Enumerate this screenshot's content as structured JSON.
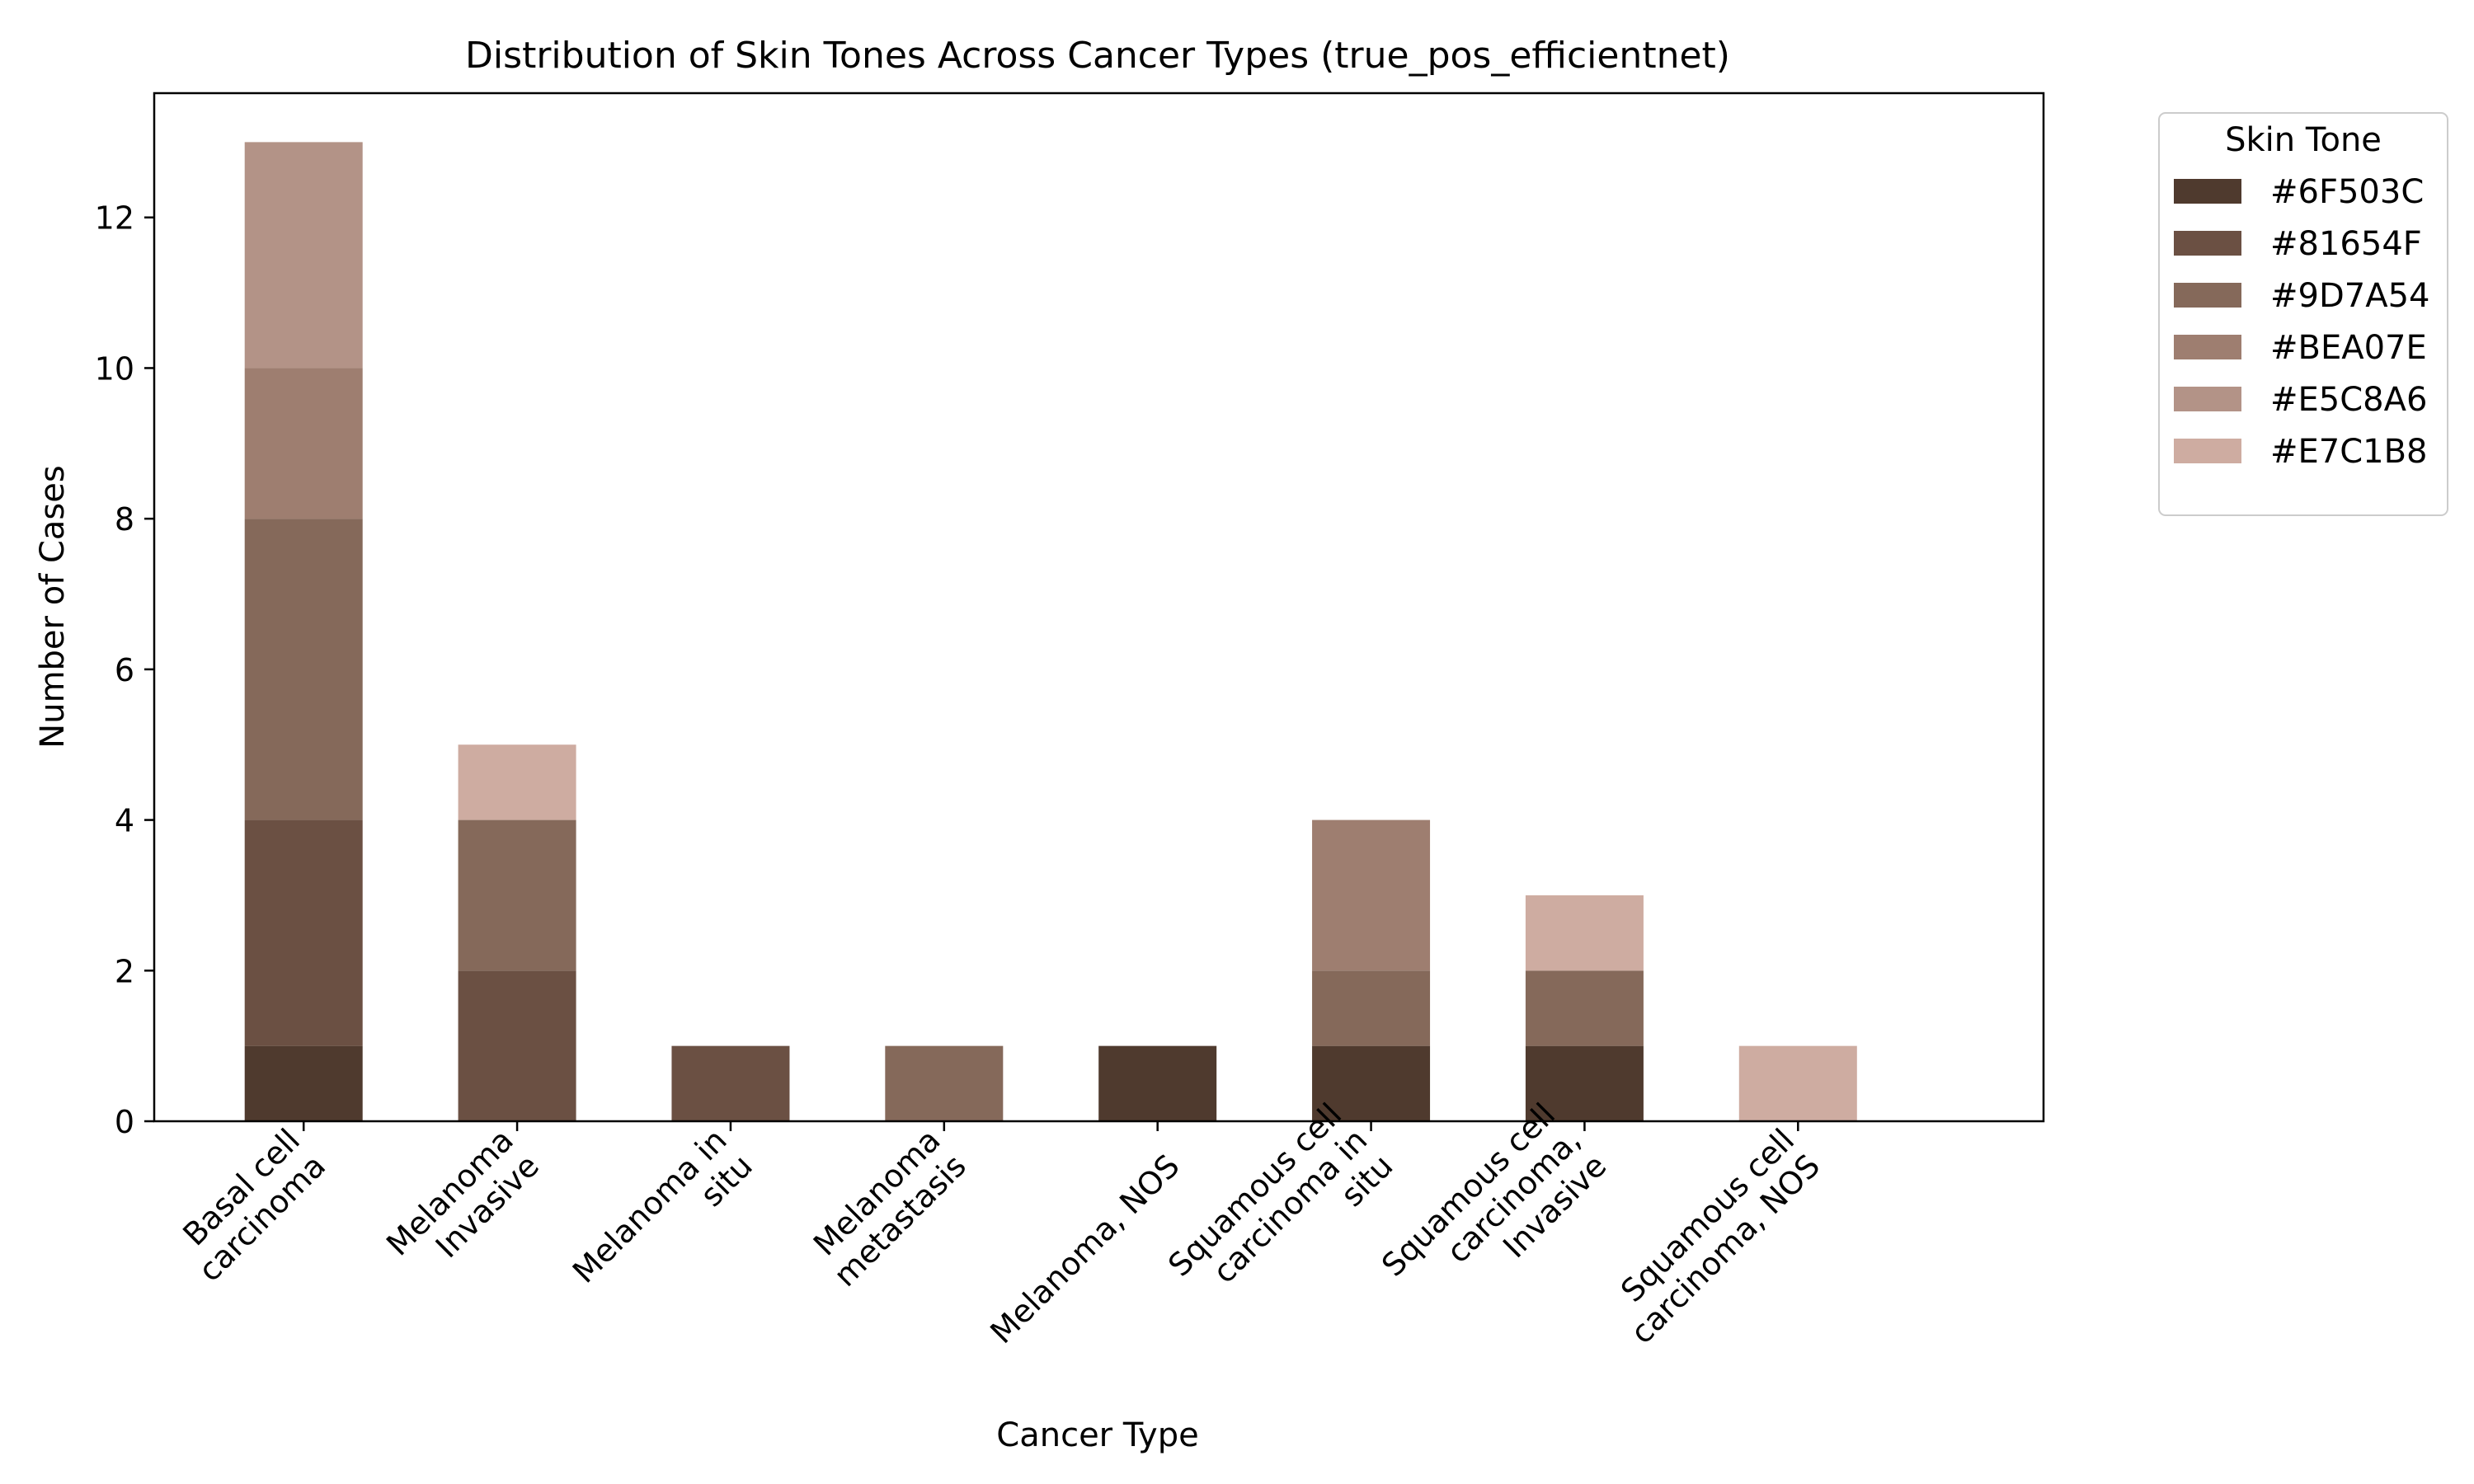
{
  "chart_data": {
    "type": "bar",
    "stacked": true,
    "title": "Distribution of Skin Tones Across Cancer Types (true_pos_efficientnet)",
    "xlabel": "Cancer Type",
    "ylabel": "Number of Cases",
    "ylim": [
      0,
      13.65
    ],
    "yticks": [
      0,
      2,
      4,
      6,
      8,
      10,
      12
    ],
    "grid": false,
    "legend_title": "Skin Tone",
    "legend_position": "outside top-right",
    "categories": [
      [
        "Basal cell",
        "carcinoma"
      ],
      [
        "Melanoma",
        "Invasive"
      ],
      [
        "Melanoma in",
        "situ"
      ],
      [
        "Melanoma",
        "metastasis"
      ],
      [
        "Melanoma, NOS"
      ],
      [
        "Squamous cell",
        "carcinoma in",
        "situ"
      ],
      [
        "Squamous cell",
        "carcinoma,",
        "Invasive"
      ],
      [
        "Squamous cell",
        "carcinoma, NOS"
      ]
    ],
    "series": [
      {
        "name": "#6F503C",
        "color": "#4f3a2e",
        "values": [
          1,
          0,
          0,
          0,
          1,
          1,
          1,
          0
        ]
      },
      {
        "name": "#81654F",
        "color": "#6b5043",
        "values": [
          3,
          2,
          1,
          0,
          0,
          0,
          0,
          0
        ]
      },
      {
        "name": "#9D7A54",
        "color": "#85695a",
        "values": [
          4,
          2,
          0,
          1,
          0,
          1,
          1,
          0
        ]
      },
      {
        "name": "#BEA07E",
        "color": "#9e7e70",
        "values": [
          2,
          0,
          0,
          0,
          0,
          2,
          0,
          0
        ]
      },
      {
        "name": "#E5C8A6",
        "color": "#b39387",
        "values": [
          3,
          0,
          0,
          0,
          0,
          0,
          0,
          0
        ]
      },
      {
        "name": "#E7C1B8",
        "color": "#ceaca1",
        "values": [
          0,
          1,
          0,
          0,
          0,
          0,
          1,
          1
        ]
      }
    ]
  }
}
